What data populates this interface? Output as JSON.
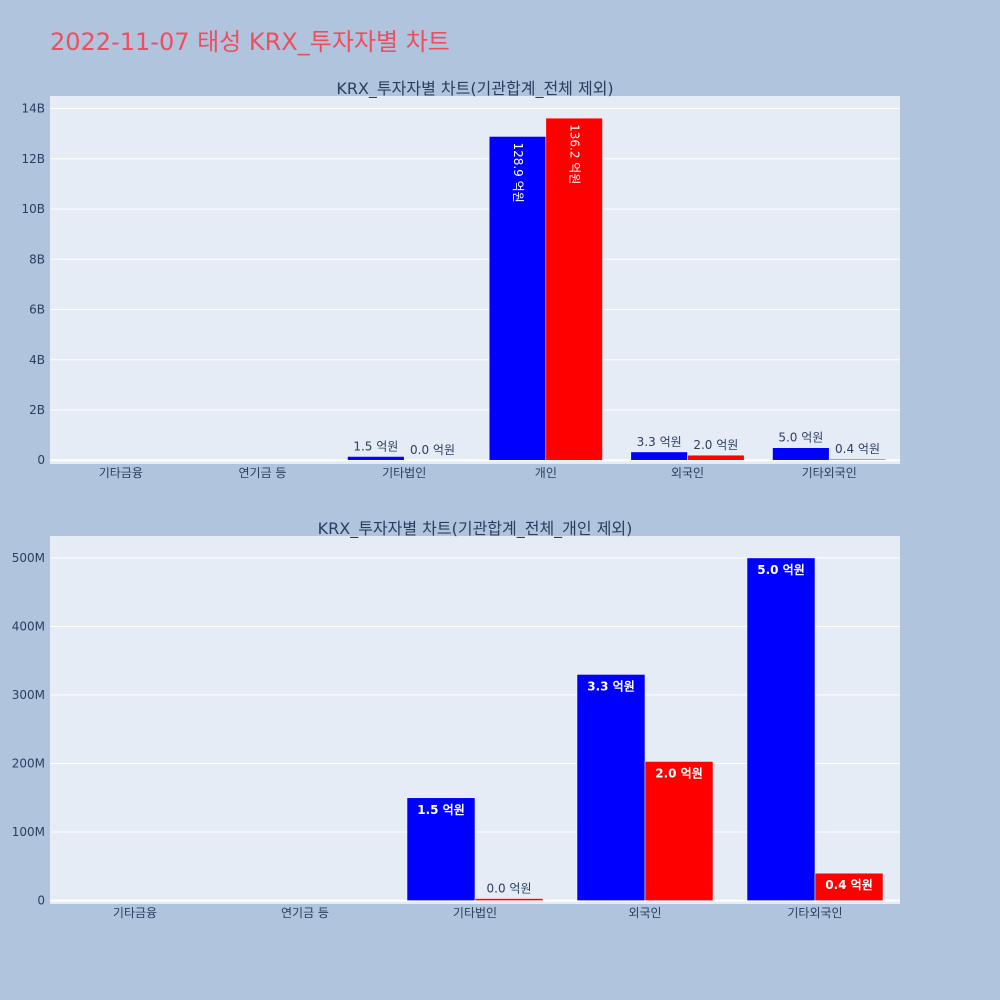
{
  "page": {
    "title": "2022-11-07 태성 KRX_투자자별 차트"
  },
  "colors": {
    "background": "#b0c4de",
    "plot_bg": "#e5ecf6",
    "title": "#ef4e5e",
    "series_a": "#0000ff",
    "series_b": "#ff0000"
  },
  "chart_data": [
    {
      "type": "bar",
      "title": "KRX_투자자별 차트(기관합계_전체 제외)",
      "categories": [
        "기타금융",
        "연기금 등",
        "기타법인",
        "개인",
        "외국인",
        "기타외국인"
      ],
      "series": [
        {
          "color": "#0000ff",
          "values": [
            0,
            0,
            150000000,
            12890000000,
            330000000,
            500000000
          ],
          "labels": [
            "",
            "",
            "1.5 억원",
            "128.9 억원",
            "3.3 억원",
            "5.0 억원"
          ]
        },
        {
          "color": "#ff0000",
          "values": [
            0,
            0,
            3000000,
            13620000000,
            203000000,
            40000000
          ],
          "labels": [
            "",
            "",
            "0.0 억원",
            "136.2 억원",
            "2.0 억원",
            "0.4 억원"
          ]
        }
      ],
      "yticks": [
        0,
        2000000000,
        4000000000,
        6000000000,
        8000000000,
        10000000000,
        12000000000,
        14000000000
      ],
      "ytick_labels": [
        "0",
        "2B",
        "4B",
        "6B",
        "8B",
        "10B",
        "12B",
        "14B"
      ],
      "ylim": [
        -150000000,
        14500000000
      ],
      "grid": true,
      "legend": "none"
    },
    {
      "type": "bar",
      "title": "KRX_투자자별 차트(기관합계_전체_개인 제외)",
      "categories": [
        "기타금융",
        "연기금 등",
        "기타법인",
        "외국인",
        "기타외국인"
      ],
      "series": [
        {
          "color": "#0000ff",
          "values": [
            0,
            0,
            150000000,
            330000000,
            500000000
          ],
          "labels": [
            "",
            "",
            "1.5 억원",
            "3.3 억원",
            "5.0 억원"
          ]
        },
        {
          "color": "#ff0000",
          "values": [
            0,
            0,
            3000000,
            203000000,
            40000000
          ],
          "labels": [
            "",
            "",
            "0.0 억원",
            "2.0 억원",
            "0.4 억원"
          ]
        }
      ],
      "yticks": [
        0,
        100000000,
        200000000,
        300000000,
        400000000,
        500000000
      ],
      "ytick_labels": [
        "0",
        "100M",
        "200M",
        "300M",
        "400M",
        "500M"
      ],
      "ylim": [
        -5000000,
        532000000
      ],
      "grid": true,
      "legend": "none"
    }
  ]
}
